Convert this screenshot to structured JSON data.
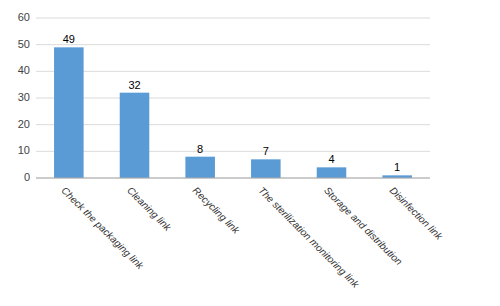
{
  "chart_data": {
    "type": "bar",
    "categories": [
      "Check the packaging link",
      "Cleaning link",
      "Recycling link",
      "The sterilization monitoring link",
      "Storage and distribution",
      "Disinfection link"
    ],
    "values": [
      49,
      32,
      8,
      7,
      4,
      1
    ],
    "color": "#5B9BD5",
    "ylim": [
      0,
      60
    ],
    "yticks": [
      0,
      10,
      20,
      30,
      40,
      50,
      60
    ],
    "grid": true,
    "data_labels": true
  }
}
